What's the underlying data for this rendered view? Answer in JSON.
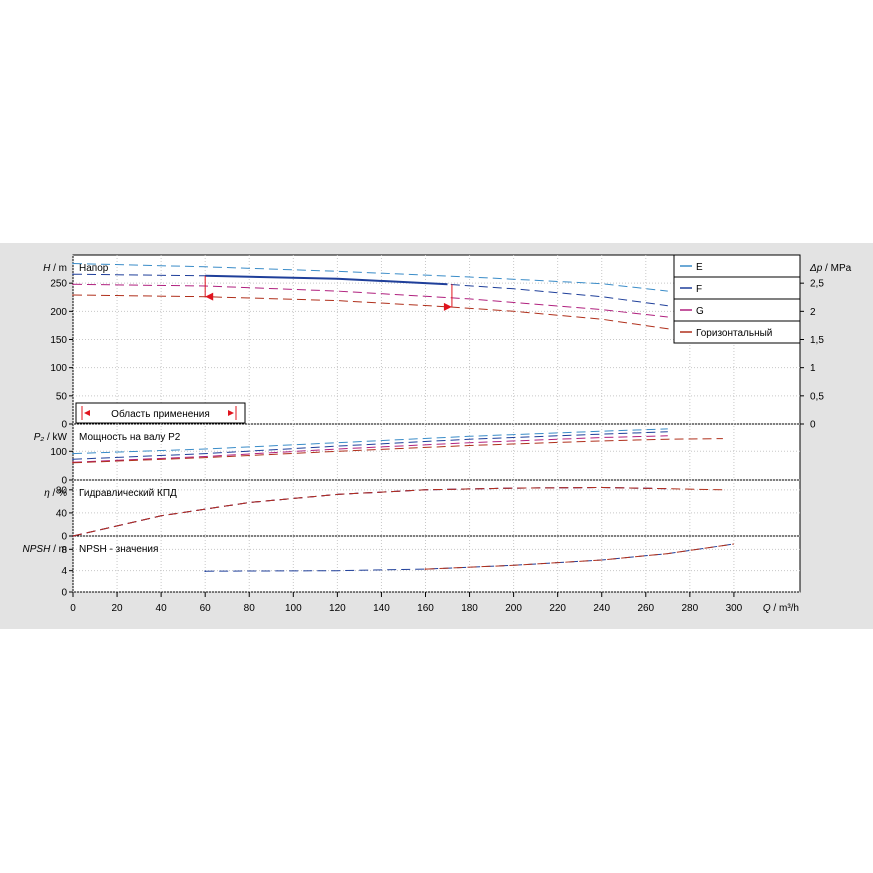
{
  "chart_data": {
    "type": "line",
    "x_axis": {
      "label": "Q / m³/h",
      "min": 0,
      "max": 330,
      "ticks": [
        0,
        20,
        40,
        60,
        80,
        100,
        120,
        140,
        160,
        180,
        200,
        220,
        240,
        260,
        280,
        300
      ]
    },
    "legend": {
      "placement": "top-right",
      "entries": [
        {
          "key": "E",
          "label": "E",
          "color": "#3a8cc8"
        },
        {
          "key": "F",
          "label": "F",
          "color": "#1f3f9a"
        },
        {
          "key": "G",
          "label": "G",
          "color": "#b0207e"
        },
        {
          "key": "H",
          "label": "Горизонтальный",
          "color": "#b0301c"
        }
      ]
    },
    "application_range": {
      "label": "Область применения",
      "q_min": 60,
      "q_max": 172
    },
    "panels": [
      {
        "id": "head",
        "title": "Напор",
        "y_label": "H / m",
        "y_right_label": "Δp / MPa",
        "ylim": [
          0,
          300
        ],
        "ticks": [
          0,
          50,
          100,
          150,
          200,
          250
        ],
        "right_ticks": [
          "0",
          "0,5",
          "1",
          "1,5",
          "2",
          "2,5"
        ],
        "series": [
          {
            "key": "E",
            "solid": [
              [
                0,
                285
              ],
              [
                60,
                279
              ],
              [
                120,
                271
              ],
              [
                180,
                261
              ],
              [
                240,
                249
              ],
              [
                270,
                236
              ]
            ],
            "dashed_until": 60
          },
          {
            "key": "F",
            "solid": [
              [
                0,
                266
              ],
              [
                60,
                263
              ],
              [
                120,
                258
              ],
              [
                170,
                248
              ],
              [
                200,
                240
              ],
              [
                240,
                226
              ],
              [
                270,
                210
              ]
            ],
            "dashed_until": 60,
            "highlight_from": 60,
            "highlight_to": 172
          },
          {
            "key": "G",
            "solid": [
              [
                0,
                248
              ],
              [
                60,
                245
              ],
              [
                120,
                236
              ],
              [
                180,
                222
              ],
              [
                240,
                203
              ],
              [
                270,
                190
              ]
            ],
            "dashed_until": 60
          },
          {
            "key": "H",
            "solid": [
              [
                0,
                229
              ],
              [
                60,
                226
              ],
              [
                120,
                219
              ],
              [
                170,
                208
              ],
              [
                200,
                200
              ],
              [
                240,
                186
              ],
              [
                270,
                169
              ],
              [
                295,
                152
              ]
            ],
            "dashed_until": 60
          }
        ]
      },
      {
        "id": "power",
        "title": "Мощность на валу P2",
        "y_label": "P₂ / kW",
        "ylim": [
          0,
          195
        ],
        "ticks": [
          0,
          100
        ],
        "series": [
          {
            "key": "E",
            "solid": [
              [
                0,
                92
              ],
              [
                60,
                108
              ],
              [
                120,
                130
              ],
              [
                180,
                152
              ],
              [
                240,
                170
              ],
              [
                270,
                178
              ]
            ]
          },
          {
            "key": "F",
            "solid": [
              [
                0,
                72
              ],
              [
                60,
                92
              ],
              [
                120,
                118
              ],
              [
                180,
                142
              ],
              [
                240,
                160
              ],
              [
                270,
                168
              ]
            ]
          },
          {
            "key": "G",
            "solid": [
              [
                0,
                62
              ],
              [
                60,
                82
              ],
              [
                120,
                108
              ],
              [
                180,
                130
              ],
              [
                240,
                148
              ],
              [
                270,
                154
              ]
            ]
          },
          {
            "key": "H",
            "solid": [
              [
                0,
                60
              ],
              [
                60,
                78
              ],
              [
                120,
                100
              ],
              [
                180,
                120
              ],
              [
                240,
                136
              ],
              [
                270,
                142
              ],
              [
                295,
                144
              ]
            ]
          }
        ]
      },
      {
        "id": "eff",
        "title": "Гидравлический КПД",
        "y_label": "η / %",
        "ylim": [
          0,
          97
        ],
        "ticks": [
          0,
          40,
          80
        ],
        "series": [
          {
            "key": "E",
            "solid": [
              [
                0,
                0
              ],
              [
                40,
                35
              ],
              [
                80,
                58
              ],
              [
                120,
                72
              ],
              [
                160,
                80
              ],
              [
                200,
                83
              ],
              [
                240,
                84
              ],
              [
                270,
                82
              ]
            ]
          },
          {
            "key": "F",
            "solid": [
              [
                0,
                0
              ],
              [
                40,
                35
              ],
              [
                80,
                58
              ],
              [
                120,
                72
              ],
              [
                160,
                80
              ],
              [
                200,
                83
              ],
              [
                240,
                84
              ],
              [
                270,
                82
              ]
            ]
          },
          {
            "key": "G",
            "solid": [
              [
                0,
                0
              ],
              [
                40,
                35
              ],
              [
                80,
                58
              ],
              [
                120,
                72
              ],
              [
                160,
                80
              ],
              [
                200,
                83
              ],
              [
                240,
                84
              ],
              [
                270,
                82
              ]
            ]
          },
          {
            "key": "H",
            "solid": [
              [
                0,
                0
              ],
              [
                40,
                35
              ],
              [
                80,
                58
              ],
              [
                120,
                72
              ],
              [
                160,
                80
              ],
              [
                200,
                83
              ],
              [
                240,
                84
              ],
              [
                270,
                82
              ],
              [
                295,
                80
              ]
            ]
          }
        ]
      },
      {
        "id": "npsh",
        "title": "NPSH - значения",
        "y_label": "NPSH / m",
        "ylim": [
          0,
          10.5
        ],
        "ticks": [
          0,
          4,
          8
        ],
        "series": [
          {
            "key": "F",
            "solid": [
              [
                60,
                3.9
              ],
              [
                120,
                4.0
              ],
              [
                160,
                4.3
              ],
              [
                200,
                5.0
              ],
              [
                240,
                6.0
              ],
              [
                270,
                7.2
              ],
              [
                300,
                9.0
              ]
            ]
          },
          {
            "key": "H",
            "solid": [
              [
                160,
                4.3
              ],
              [
                200,
                5.0
              ],
              [
                240,
                6.0
              ],
              [
                270,
                7.2
              ],
              [
                300,
                9.0
              ]
            ]
          }
        ]
      }
    ]
  }
}
